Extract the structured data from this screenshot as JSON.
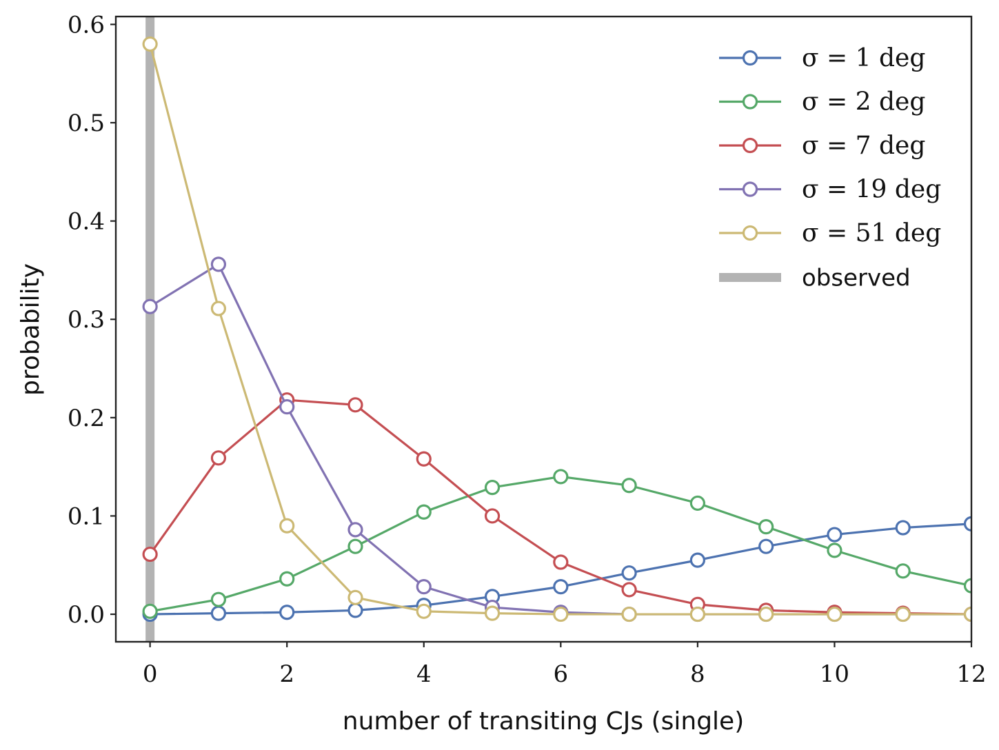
{
  "chart_data": {
    "type": "line",
    "title": "",
    "xlabel": "number of transiting CJs (single)",
    "ylabel": "probability",
    "xlim": [
      -0.5,
      12
    ],
    "ylim": [
      -0.028,
      0.608
    ],
    "xticks": [
      0,
      2,
      4,
      6,
      8,
      10,
      12
    ],
    "xtick_labels": [
      "0",
      "2",
      "4",
      "6",
      "8",
      "10",
      "12"
    ],
    "yticks": [
      0.0,
      0.1,
      0.2,
      0.3,
      0.4,
      0.5,
      0.6
    ],
    "ytick_labels": [
      "0.0",
      "0.1",
      "0.2",
      "0.3",
      "0.4",
      "0.5",
      "0.6"
    ],
    "grid": false,
    "legend_position": "top-right",
    "x": [
      0,
      1,
      2,
      3,
      4,
      5,
      6,
      7,
      8,
      9,
      10,
      11,
      12
    ],
    "series": [
      {
        "name": "σ = 1 deg",
        "sigma_label": "σ = 1 deg",
        "color": "#4c72b0",
        "values": [
          0.0,
          0.001,
          0.002,
          0.004,
          0.009,
          0.018,
          0.028,
          0.042,
          0.055,
          0.069,
          0.081,
          0.088,
          0.092
        ]
      },
      {
        "name": "σ = 2 deg",
        "sigma_label": "σ = 2 deg",
        "color": "#55a868",
        "values": [
          0.003,
          0.015,
          0.036,
          0.069,
          0.104,
          0.129,
          0.14,
          0.131,
          0.113,
          0.089,
          0.065,
          0.044,
          0.029
        ]
      },
      {
        "name": "σ = 7 deg",
        "sigma_label": "σ = 7 deg",
        "color": "#c44e52",
        "values": [
          0.061,
          0.159,
          0.218,
          0.213,
          0.158,
          0.1,
          0.053,
          0.025,
          0.01,
          0.004,
          0.002,
          0.001,
          0.0
        ]
      },
      {
        "name": "σ = 19 deg",
        "sigma_label": "σ = 19 deg",
        "color": "#8172b2",
        "values": [
          0.313,
          0.356,
          0.211,
          0.086,
          0.028,
          0.007,
          0.002,
          0.0,
          0.0,
          0.0,
          0.0,
          0.0,
          0.0
        ]
      },
      {
        "name": "σ = 51 deg",
        "sigma_label": "σ = 51 deg",
        "color": "#ccb974",
        "values": [
          0.58,
          0.311,
          0.09,
          0.017,
          0.003,
          0.001,
          0.0,
          0.0,
          0.0,
          0.0,
          0.0,
          0.0,
          0.0
        ]
      }
    ],
    "observed": {
      "name": "observed",
      "x": 0,
      "color": "#b3b3b3"
    }
  }
}
